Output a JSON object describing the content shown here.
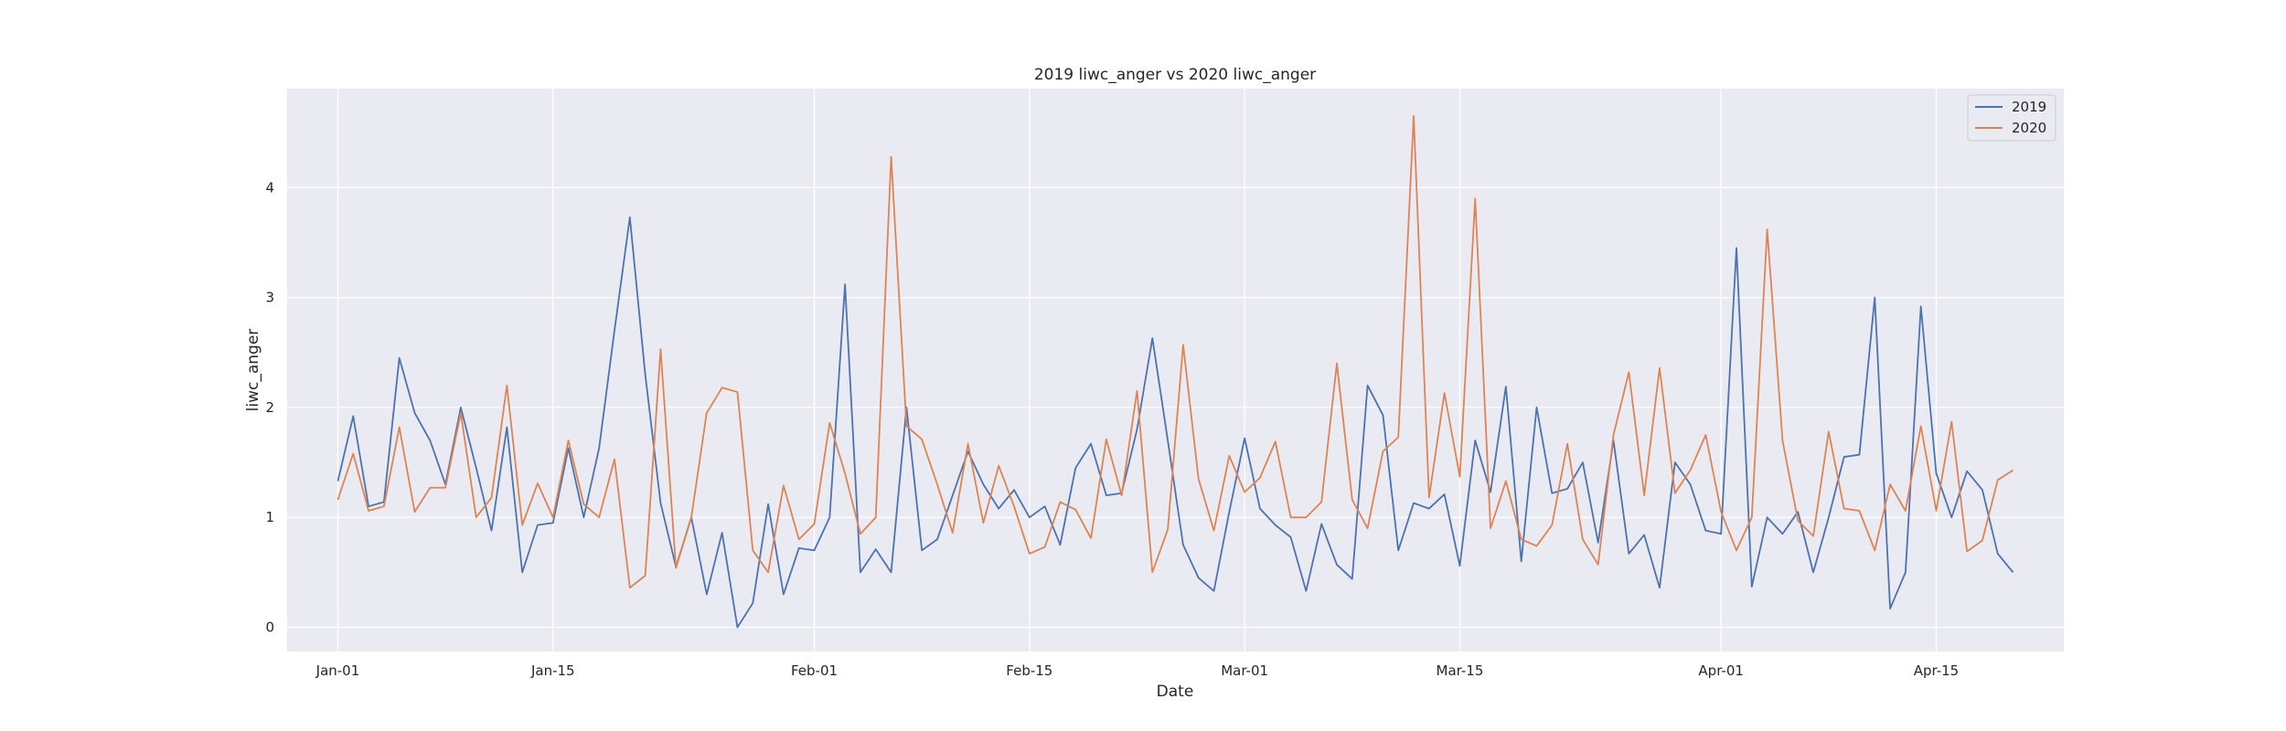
{
  "chart_data": {
    "type": "line",
    "title": "2019 liwc_anger vs 2020 liwc_anger",
    "xlabel": "Date",
    "ylabel": "liwc_anger",
    "x_start": "Jan-01",
    "x_end": "Apr-20",
    "x_ticks": [
      "Jan-01",
      "Jan-15",
      "Feb-01",
      "Feb-15",
      "Mar-01",
      "Mar-15",
      "Apr-01",
      "Apr-15"
    ],
    "y_ticks": [
      0,
      1,
      2,
      3,
      4
    ],
    "ylim": [
      -0.22,
      4.9
    ],
    "grid": true,
    "legend_position": "top-right",
    "colors": {
      "background": "#eaeaf2",
      "grid": "#ffffff",
      "s2019": "#4c72b0",
      "s2020": "#dd8452"
    },
    "series": [
      {
        "name": "2019",
        "values": [
          1.33,
          1.92,
          1.1,
          1.14,
          2.45,
          1.95,
          1.7,
          1.3,
          2.0,
          1.45,
          0.88,
          1.82,
          0.5,
          0.93,
          0.95,
          1.63,
          1.0,
          1.63,
          2.7,
          3.73,
          2.3,
          1.13,
          0.55,
          1.0,
          0.3,
          0.86,
          0.0,
          0.22,
          1.12,
          0.3,
          0.72,
          0.7,
          1.0,
          3.12,
          0.5,
          0.71,
          0.5,
          2.0,
          0.7,
          0.8,
          1.2,
          1.6,
          1.3,
          1.08,
          1.25,
          1.0,
          1.1,
          0.75,
          1.45,
          1.67,
          1.2,
          1.22,
          1.8,
          2.63,
          1.7,
          0.75,
          0.45,
          0.33,
          1.05,
          1.72,
          1.08,
          0.93,
          0.82,
          0.33,
          0.94,
          0.57,
          0.44,
          2.2,
          1.93,
          0.7,
          1.13,
          1.08,
          1.21,
          0.56,
          1.7,
          1.23,
          2.19,
          0.6,
          2.0,
          1.22,
          1.26,
          1.5,
          0.77,
          1.7,
          0.67,
          0.84,
          0.36,
          1.5,
          1.3,
          0.88,
          0.85,
          3.45,
          0.37,
          1.0,
          0.85,
          1.05,
          0.5,
          1.0,
          1.55,
          1.57,
          3.0,
          0.17,
          0.5,
          2.92,
          1.4,
          1.0,
          1.42,
          1.25,
          0.67,
          0.5
        ]
      },
      {
        "name": "2020",
        "values": [
          1.16,
          1.58,
          1.06,
          1.1,
          1.82,
          1.05,
          1.27,
          1.27,
          1.95,
          1.0,
          1.18,
          2.2,
          0.93,
          1.31,
          1.0,
          1.7,
          1.12,
          1.0,
          1.53,
          0.36,
          0.47,
          2.53,
          0.54,
          1.0,
          1.95,
          2.18,
          2.14,
          0.7,
          0.5,
          1.29,
          0.8,
          0.94,
          1.86,
          1.4,
          0.85,
          1.0,
          4.28,
          1.83,
          1.71,
          1.3,
          0.86,
          1.67,
          0.95,
          1.47,
          1.1,
          0.67,
          0.73,
          1.14,
          1.07,
          0.81,
          1.71,
          1.2,
          2.15,
          0.5,
          0.89,
          2.57,
          1.35,
          0.88,
          1.56,
          1.23,
          1.36,
          1.69,
          1.0,
          1.0,
          1.14,
          2.4,
          1.16,
          0.9,
          1.6,
          1.73,
          4.65,
          1.18,
          2.13,
          1.37,
          3.9,
          0.9,
          1.33,
          0.8,
          0.74,
          0.93,
          1.67,
          0.8,
          0.57,
          1.75,
          2.32,
          1.2,
          2.36,
          1.22,
          1.43,
          1.75,
          1.05,
          0.7,
          1.0,
          3.62,
          1.7,
          0.97,
          0.83,
          1.78,
          1.08,
          1.06,
          0.7,
          1.3,
          1.06,
          1.83,
          1.06,
          1.87,
          0.69,
          0.79,
          1.34,
          1.43
        ]
      }
    ]
  }
}
